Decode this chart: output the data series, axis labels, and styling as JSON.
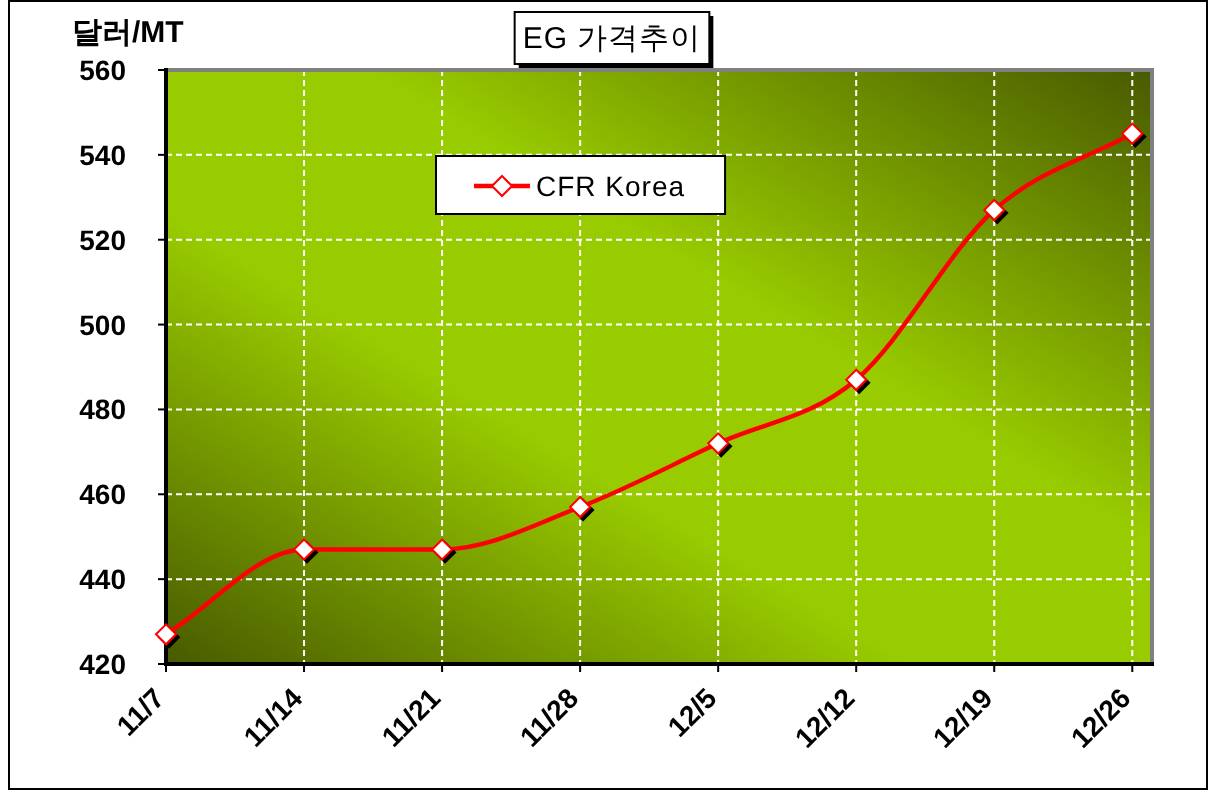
{
  "chart_data": {
    "type": "line",
    "title": "EG 가격추이",
    "ylabel": "달러/MT",
    "x": [
      "--11-07",
      "--11-14",
      "--11-21",
      "--11-28",
      "--12-05",
      "--12-12",
      "--12-19",
      "--12-26"
    ],
    "series": [
      {
        "name": "CFR Korea",
        "color": "#ff0000",
        "values": [
          427,
          447,
          447,
          457,
          472,
          487,
          527,
          545
        ]
      }
    ],
    "xlim": [
      "--11-07",
      "--12-27"
    ],
    "xticks": [
      {
        "value": "--11-07",
        "label": "11/7"
      },
      {
        "value": "--11-14",
        "label": "11/14"
      },
      {
        "value": "--11-21",
        "label": "11/21"
      },
      {
        "value": "--11-28",
        "label": "11/28"
      },
      {
        "value": "--12-05",
        "label": "12/5"
      },
      {
        "value": "--12-12",
        "label": "12/12"
      },
      {
        "value": "--12-19",
        "label": "12/19"
      },
      {
        "value": "--12-26",
        "label": "12/26"
      }
    ],
    "ylim": [
      420,
      560
    ],
    "yticks": [
      420,
      440,
      460,
      480,
      500,
      520,
      540,
      560
    ],
    "grid": true,
    "legend": "top left",
    "marker": "diamond",
    "line_style": "solid"
  }
}
